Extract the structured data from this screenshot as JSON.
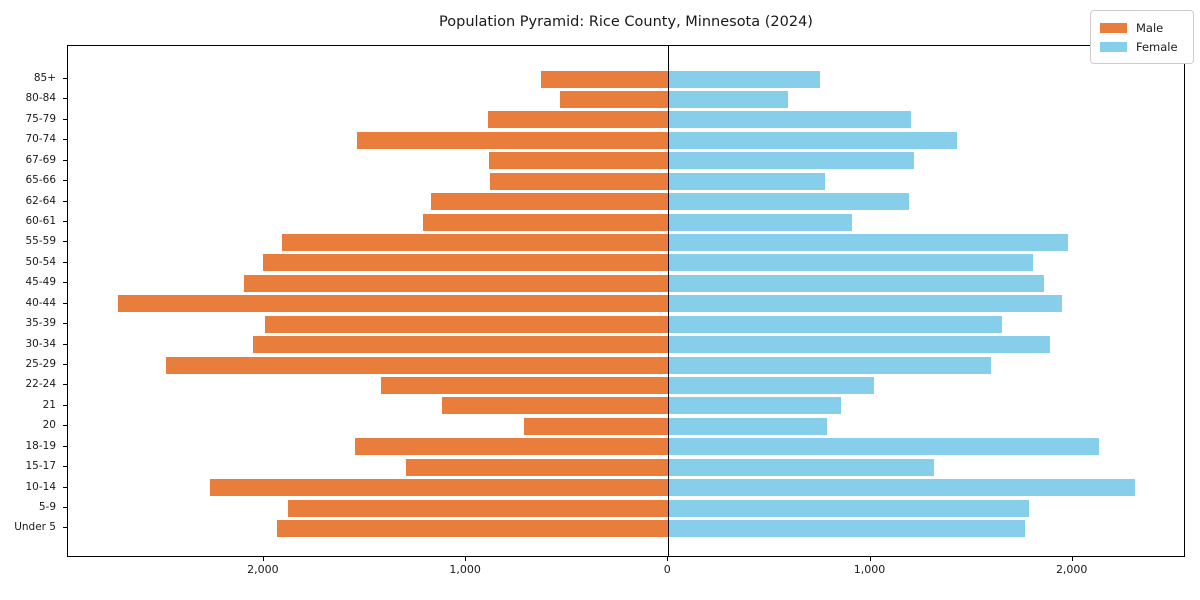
{
  "chart_data": {
    "type": "bar",
    "subtype": "population-pyramid",
    "title": "Population Pyramid: Rice County, Minnesota (2024)",
    "orientation": "horizontal-diverging",
    "categories_top_to_bottom": [
      "85+",
      "80-84",
      "75-79",
      "70-74",
      "67-69",
      "65-66",
      "62-64",
      "60-61",
      "55-59",
      "50-54",
      "45-49",
      "40-44",
      "35-39",
      "30-34",
      "25-29",
      "22-24",
      "21",
      "20",
      "18-19",
      "15-17",
      "10-14",
      "5-9",
      "Under 5"
    ],
    "series": [
      {
        "name": "Male",
        "side": "left",
        "color": "#e87d3c",
        "values": [
          630,
          535,
          890,
          1540,
          885,
          880,
          1175,
          1215,
          1910,
          2005,
          2100,
          2720,
          1995,
          2055,
          2485,
          1420,
          1120,
          715,
          1550,
          1295,
          2265,
          1880,
          1935
        ]
      },
      {
        "name": "Female",
        "side": "right",
        "color": "#87ceeb",
        "values": [
          750,
          590,
          1200,
          1430,
          1215,
          775,
          1190,
          910,
          1975,
          1805,
          1860,
          1945,
          1650,
          1890,
          1595,
          1015,
          855,
          785,
          2130,
          1315,
          2310,
          1785,
          1765
        ]
      }
    ],
    "x_axis": {
      "tick_values": [
        -2000,
        -1000,
        0,
        1000,
        2000
      ],
      "tick_labels": [
        "2,000",
        "1,000",
        "0",
        "1,000",
        "2,000"
      ],
      "xlim": [
        -2970,
        2560
      ]
    },
    "legend": {
      "position": "upper-right",
      "entries": [
        "Male",
        "Female"
      ]
    },
    "grid": false,
    "zero_axis_line": true,
    "colors": {
      "male": "#e87d3c",
      "female": "#87ceeb",
      "axis": "#000000",
      "text": "#1a1a1a",
      "background": "#ffffff"
    }
  }
}
